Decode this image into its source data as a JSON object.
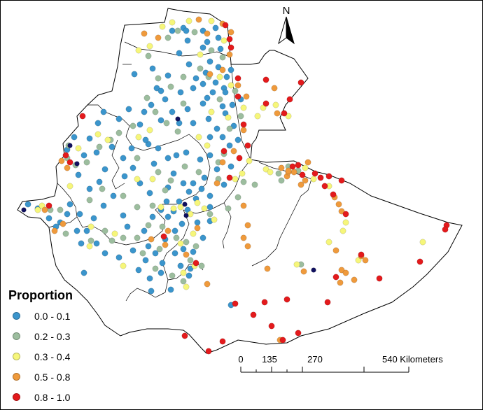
{
  "map": {
    "north_label": "N",
    "colors": {
      "c1": "#3b95cc",
      "c2": "#9cbd9e",
      "c3": "#f6f67a",
      "c4": "#ef9a3c",
      "c5": "#e31a1c",
      "outlier": "#10105e"
    }
  },
  "legend": {
    "title": "Proportion",
    "items": [
      {
        "label": "0.0 - 0.1",
        "color": "#3b95cc"
      },
      {
        "label": "0.2 - 0.3",
        "color": "#9cbd9e"
      },
      {
        "label": "0.3 - 0.4",
        "color": "#f6f67a"
      },
      {
        "label": "0.5 - 0.8",
        "color": "#ef9a3c"
      },
      {
        "label": "0.8 - 1.0",
        "color": "#e31a1c"
      }
    ]
  },
  "scale_bar": {
    "ticks": [
      "0",
      "135",
      "270",
      "540 Kilometers"
    ]
  }
}
